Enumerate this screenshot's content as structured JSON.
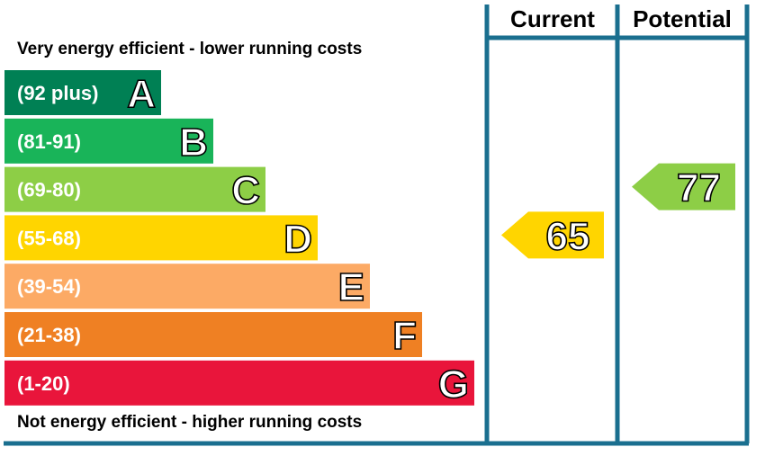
{
  "chart_data": {
    "type": "bar",
    "title": "",
    "headers": {
      "current": "Current",
      "potential": "Potential"
    },
    "top_caption": "Very energy efficient - lower running costs",
    "bottom_caption": "Not energy efficient - higher running costs",
    "bands": [
      {
        "letter": "A",
        "range": "(92 plus)",
        "min": 92,
        "max": 100,
        "color": "#008054"
      },
      {
        "letter": "B",
        "range": "(81-91)",
        "min": 81,
        "max": 91,
        "color": "#19b459"
      },
      {
        "letter": "C",
        "range": "(69-80)",
        "min": 69,
        "max": 80,
        "color": "#8dce46"
      },
      {
        "letter": "D",
        "range": "(55-68)",
        "min": 55,
        "max": 68,
        "color": "#ffd500"
      },
      {
        "letter": "E",
        "range": "(39-54)",
        "min": 39,
        "max": 54,
        "color": "#fcaa65"
      },
      {
        "letter": "F",
        "range": "(21-38)",
        "min": 21,
        "max": 38,
        "color": "#ef8023"
      },
      {
        "letter": "G",
        "range": "(1-20)",
        "min": 1,
        "max": 20,
        "color": "#e9153b"
      }
    ],
    "current": {
      "value": 65,
      "band": "D",
      "color": "#ffd500"
    },
    "potential": {
      "value": 77,
      "band": "C",
      "color": "#8dce46"
    },
    "frame_color": "#1a6f8f"
  }
}
